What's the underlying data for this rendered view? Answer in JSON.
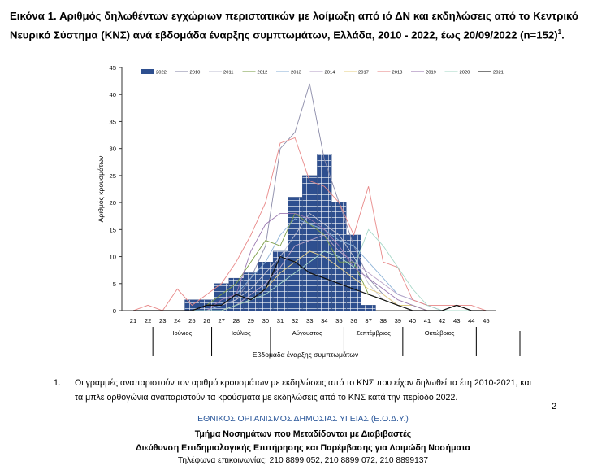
{
  "header": {
    "title": "Εικόνα 1. Αριθμός δηλωθέντων εγχώριων περιστατικών με λοίμωξη από ιό ΔΝ και εκδηλώσεις από το Κεντρικό Νευρικό Σύστημα (ΚΝΣ) ανά εβδομάδα έναρξης συμπτωμάτων, Ελλάδα, 2010 - 2022, έως 20/09/2022 (n=152)",
    "title_sup": "1",
    "title_end": "."
  },
  "chart_data": {
    "type": "bar",
    "title": "",
    "xlabel": "Εβδομάδα έναρξης συμπτωμάτων",
    "ylabel": "Αριθμός κρουσμάτων",
    "ylim": [
      0,
      45
    ],
    "yticks": [
      0,
      5,
      10,
      15,
      20,
      25,
      30,
      35,
      40,
      45
    ],
    "grid": false,
    "legend_position": "top",
    "x": [
      21,
      22,
      23,
      24,
      25,
      26,
      27,
      28,
      29,
      30,
      31,
      32,
      33,
      34,
      35,
      36,
      37,
      38,
      39,
      40,
      41,
      42,
      43,
      44,
      45
    ],
    "months": [
      {
        "label": "Ιούνιος",
        "from": 22,
        "to": 26
      },
      {
        "label": "Ιούλιος",
        "from": 26,
        "to": 30
      },
      {
        "label": "Αύγουστος",
        "from": 30,
        "to": 35
      },
      {
        "label": "Σεπτέμβριος",
        "from": 35,
        "to": 39
      },
      {
        "label": "Οκτώβριος",
        "from": 39,
        "to": 44
      }
    ],
    "bars": {
      "name": "2022",
      "color": "#2e4f8f",
      "values": [
        0,
        0,
        0,
        0,
        2,
        2,
        5,
        6,
        7,
        9,
        11,
        21,
        25,
        29,
        20,
        14,
        1,
        0,
        0,
        0,
        0,
        0,
        0,
        0,
        0
      ]
    },
    "series": [
      {
        "name": "2010",
        "color": "#8a8aa8",
        "values": [
          0,
          0,
          0,
          0,
          0,
          0,
          1,
          2,
          6,
          12,
          30,
          33,
          42,
          28,
          20,
          12,
          6,
          3,
          1,
          1,
          0,
          0,
          0,
          0,
          0
        ]
      },
      {
        "name": "2011",
        "color": "#c4c4d4",
        "values": [
          0,
          0,
          0,
          0,
          0,
          0,
          1,
          2,
          4,
          7,
          10,
          14,
          18,
          16,
          14,
          10,
          5,
          2,
          1,
          0,
          0,
          0,
          0,
          0,
          0
        ]
      },
      {
        "name": "2012",
        "color": "#7fa04a",
        "values": [
          0,
          0,
          0,
          0,
          0,
          1,
          3,
          5,
          9,
          13,
          12,
          18,
          16,
          14,
          9,
          9,
          3,
          2,
          1,
          1,
          0,
          0,
          0,
          0,
          0
        ]
      },
      {
        "name": "2013",
        "color": "#8fb4d8",
        "values": [
          0,
          0,
          0,
          0,
          0,
          0,
          1,
          3,
          6,
          9,
          14,
          17,
          16,
          15,
          13,
          12,
          9,
          6,
          3,
          2,
          1,
          0,
          0,
          0,
          0
        ]
      },
      {
        "name": "2014",
        "color": "#b9a4c8",
        "values": [
          0,
          0,
          0,
          0,
          0,
          0,
          0,
          1,
          3,
          5,
          8,
          12,
          13,
          14,
          11,
          9,
          7,
          5,
          3,
          2,
          1,
          0,
          0,
          0,
          0
        ]
      },
      {
        "name": "2017",
        "color": "#e8d088",
        "values": [
          0,
          0,
          0,
          0,
          0,
          0,
          0,
          1,
          2,
          4,
          7,
          9,
          11,
          10,
          8,
          6,
          4,
          3,
          1,
          1,
          0,
          0,
          0,
          0,
          0
        ]
      },
      {
        "name": "2018",
        "color": "#e88888",
        "values": [
          0,
          1,
          0,
          4,
          1,
          3,
          5,
          9,
          14,
          20,
          31,
          32,
          24,
          23,
          20,
          14,
          23,
          9,
          8,
          2,
          1,
          1,
          1,
          1,
          0
        ]
      },
      {
        "name": "2019",
        "color": "#9a78b0",
        "values": [
          0,
          0,
          0,
          0,
          0,
          0,
          2,
          3,
          11,
          16,
          18,
          18,
          17,
          15,
          12,
          8,
          6,
          4,
          2,
          1,
          0,
          0,
          0,
          0,
          0
        ]
      },
      {
        "name": "2020",
        "color": "#a8d8c8",
        "values": [
          0,
          0,
          0,
          0,
          0,
          0,
          0,
          1,
          2,
          3,
          5,
          7,
          9,
          11,
          10,
          8,
          15,
          12,
          8,
          4,
          1,
          0,
          0,
          0,
          0
        ]
      },
      {
        "name": "2021",
        "color": "#111111",
        "values": [
          0,
          0,
          0,
          0,
          0,
          1,
          1,
          3,
          2,
          4,
          10,
          9,
          7,
          6,
          5,
          4,
          3,
          2,
          1,
          0,
          0,
          0,
          1,
          0,
          0
        ]
      }
    ]
  },
  "footnote": {
    "number": "1.",
    "line1": "Οι γραμμές αναπαριστούν τον αριθμό κρουσμάτων με εκδηλώσεις από το ΚΝΣ που είχαν δηλωθεί τα έτη 2010-2021, και",
    "line2": "τα μπλε ορθογώνια αναπαριστούν τα κρούσματα με εκδηλώσεις από το ΚΝΣ κατά την περίοδο 2022."
  },
  "page_number": "2",
  "footer": {
    "org": "ΕΘΝΙΚΟΣ ΟΡΓΑΝΙΣΜΟΣ ΔΗΜΟΣΙΑΣ ΥΓΕΙΑΣ (Ε.Ο.Δ.Υ.)",
    "dept": "Τμήμα Νοσημάτων που Μεταδίδονται με Διαβιβαστές",
    "directorate": "Διεύθυνση Επιδημιολογικής Επιτήρησης και Παρέμβασης για Λοιμώδη Νοσήματα",
    "phones": "Τηλέφωνα επικοινωνίας: 210 8899 052, 210 8899 072, 210 8899137"
  }
}
